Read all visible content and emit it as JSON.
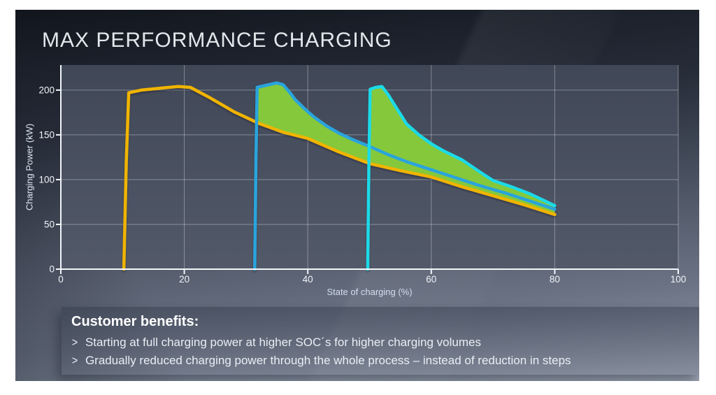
{
  "slide": {
    "title": "MAX PERFORMANCE CHARGING"
  },
  "chart_data": {
    "type": "line",
    "title": "MAX PERFORMANCE CHARGING",
    "xlabel": "State of charging (%)",
    "ylabel": "Charging Power (kW)",
    "xlim": [
      0,
      100
    ],
    "ylim": [
      0,
      228
    ],
    "x_ticks": [
      0,
      20,
      40,
      60,
      80,
      100
    ],
    "y_ticks": [
      0,
      50,
      100,
      150,
      200
    ],
    "grid": true,
    "legend": "none",
    "series": [
      {
        "name": "charging-curve-start-soc-10",
        "color": "#F0B400",
        "points": [
          [
            10.2,
            0
          ],
          [
            10.6,
            120
          ],
          [
            11,
            197
          ],
          [
            13,
            200
          ],
          [
            16,
            202
          ],
          [
            19,
            204
          ],
          [
            21,
            203
          ],
          [
            24,
            192
          ],
          [
            28,
            176
          ],
          [
            32,
            163
          ],
          [
            36,
            153
          ],
          [
            40,
            146
          ],
          [
            45,
            131
          ],
          [
            50,
            118
          ],
          [
            55,
            110
          ],
          [
            60,
            103
          ],
          [
            65,
            92
          ],
          [
            70,
            82
          ],
          [
            75,
            72
          ],
          [
            80,
            61
          ]
        ]
      },
      {
        "name": "max-performance-curve-start-soc-31",
        "color": "#2AA4DC",
        "points": [
          [
            31.4,
            0
          ],
          [
            31.6,
            120
          ],
          [
            31.8,
            203
          ],
          [
            33,
            205
          ],
          [
            35,
            208
          ],
          [
            36,
            206
          ],
          [
            37,
            198
          ],
          [
            38,
            189
          ],
          [
            39.5,
            179
          ],
          [
            41,
            170
          ],
          [
            43,
            160
          ],
          [
            45,
            152
          ],
          [
            47.5,
            144
          ],
          [
            50,
            137
          ],
          [
            53,
            128
          ],
          [
            56,
            120
          ],
          [
            60,
            111
          ],
          [
            64,
            102
          ],
          [
            68,
            93
          ],
          [
            72,
            85
          ],
          [
            76,
            76
          ],
          [
            80,
            67
          ]
        ]
      },
      {
        "name": "max-performance-curve-start-soc-50",
        "color": "#1EDAE8",
        "points": [
          [
            49.7,
            0
          ],
          [
            49.9,
            120
          ],
          [
            50.1,
            201
          ],
          [
            51,
            203
          ],
          [
            52,
            204
          ],
          [
            53,
            195
          ],
          [
            54,
            184
          ],
          [
            55,
            173
          ],
          [
            56,
            162
          ],
          [
            58,
            150
          ],
          [
            60,
            140
          ],
          [
            62,
            132
          ],
          [
            65,
            122
          ],
          [
            68,
            108
          ],
          [
            70,
            99
          ],
          [
            73,
            92
          ],
          [
            76,
            84
          ],
          [
            80,
            71
          ]
        ]
      }
    ],
    "band": {
      "name": "added-charging-volume",
      "color": "#85C83A",
      "upper": [
        [
          31.8,
          203
        ],
        [
          33,
          205
        ],
        [
          35,
          208
        ],
        [
          36,
          206
        ],
        [
          37,
          198
        ],
        [
          38,
          189
        ],
        [
          39.5,
          179
        ],
        [
          41,
          170
        ],
        [
          43,
          160
        ],
        [
          45,
          152
        ],
        [
          47.5,
          144
        ],
        [
          50,
          137
        ],
        [
          50,
          201
        ],
        [
          51,
          203
        ],
        [
          52,
          204
        ],
        [
          53,
          195
        ],
        [
          54,
          184
        ],
        [
          55,
          173
        ],
        [
          56,
          162
        ],
        [
          58,
          150
        ],
        [
          60,
          140
        ],
        [
          62,
          132
        ],
        [
          65,
          122
        ],
        [
          68,
          108
        ],
        [
          70,
          99
        ],
        [
          73,
          92
        ],
        [
          76,
          84
        ],
        [
          80,
          71
        ]
      ],
      "lower": [
        [
          32,
          163
        ],
        [
          36,
          153
        ],
        [
          40,
          146
        ],
        [
          45,
          131
        ],
        [
          50,
          118
        ],
        [
          55,
          110
        ],
        [
          60,
          103
        ],
        [
          65,
          92
        ],
        [
          70,
          82
        ],
        [
          75,
          72
        ],
        [
          80,
          61
        ]
      ]
    }
  },
  "benefits": {
    "heading": "Customer benefits:",
    "bullet_char": ">",
    "items": [
      "Starting at full charging power at higher SOC´s for higher charging volumes",
      "Gradually reduced charging power through the whole process – instead of reduction in steps"
    ]
  }
}
